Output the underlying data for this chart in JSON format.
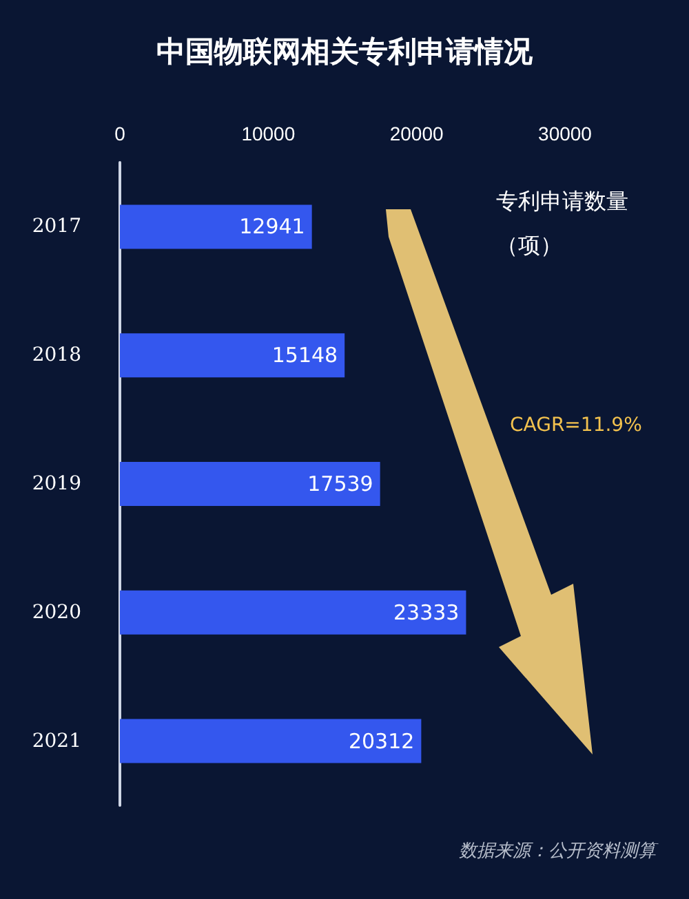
{
  "chart_data": {
    "type": "bar",
    "orientation": "horizontal",
    "title": "中国物联网相关专利申请情况",
    "xlabel": "专利申请数量（项）",
    "categories": [
      "2017",
      "2018",
      "2019",
      "2020",
      "2021"
    ],
    "values": [
      12941,
      15148,
      17539,
      23333,
      20312
    ],
    "color": "#3457ee",
    "xlim": [
      0,
      30000
    ],
    "xticks": [
      0,
      10000,
      20000,
      30000
    ],
    "grid": false,
    "data_labels": true,
    "annotations": [
      "CAGR=11.9%",
      "数据来源：公开资料测算"
    ]
  }
}
